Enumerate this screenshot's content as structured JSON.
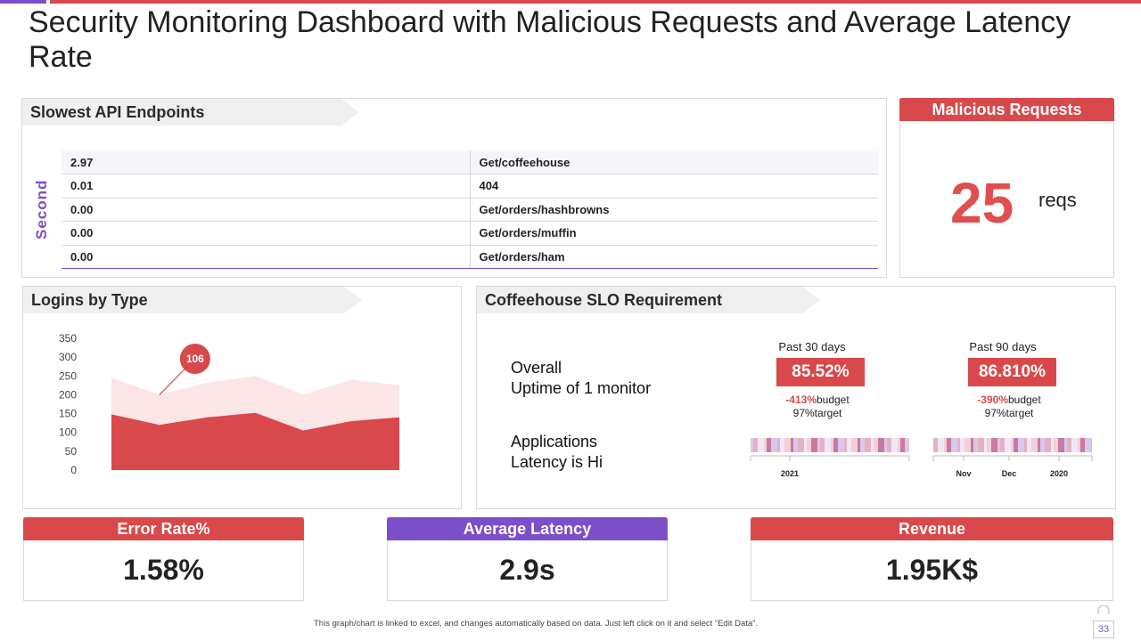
{
  "page": {
    "title": "Security Monitoring Dashboard with Malicious Requests and Average Latency Rate",
    "footer_note": "This graph/chart is linked to excel, and changes automatically based on data. Just left click on it and select “Edit Data”.",
    "page_number": "33"
  },
  "colors": {
    "accent_red": "#d9484a",
    "accent_purple": "#7b4fc9",
    "area_light": "#fbe5e6",
    "area_dark": "#d9484a"
  },
  "api_endpoints": {
    "title": "Slowest API Endpoints",
    "axis_label": "Second",
    "rows": [
      {
        "seconds": "2.97",
        "endpoint": "Get/coffeehouse"
      },
      {
        "seconds": "0.01",
        "endpoint": "404"
      },
      {
        "seconds": "0.00",
        "endpoint": "Get/orders/hashbrowns"
      },
      {
        "seconds": "0.00",
        "endpoint": "Get/orders/muffin"
      },
      {
        "seconds": "0.00",
        "endpoint": "Get/orders/ham"
      }
    ]
  },
  "malicious": {
    "title": "Malicious Requests",
    "value": "25",
    "unit": "reqs"
  },
  "logins": {
    "title": "Logins by Type"
  },
  "chart_data": {
    "type": "area",
    "title": "",
    "xlabel": "",
    "ylabel": "",
    "ylim": [
      0,
      350
    ],
    "yticks": [
      "350",
      "300",
      "250",
      "200",
      "150",
      "100",
      "50",
      "0"
    ],
    "x": [
      0,
      1,
      2,
      3,
      4,
      5,
      6
    ],
    "series": [
      {
        "values": [
          245,
          200,
          232,
          250,
          200,
          240,
          225
        ]
      },
      {
        "values": [
          148,
          120,
          140,
          152,
          105,
          130,
          140
        ]
      }
    ],
    "annotation": {
      "label": "106",
      "x_index": 1
    },
    "grid": false,
    "legend": "none"
  },
  "slo": {
    "title": "Coffeehouse SLO Requirement",
    "overall_line1": "Overall",
    "overall_line2": "Uptime of 1 monitor",
    "apps_line1": "Applications",
    "apps_line2": "Latency is Hi",
    "periods": [
      {
        "label": "Past 30 days",
        "value": "85.52%",
        "budget_pct": "-413%",
        "budget_word": "budget",
        "target": "97%target",
        "ticks": [
          "2021"
        ]
      },
      {
        "label": "Past 90 days",
        "value": "86.810%",
        "budget_pct": "-390%",
        "budget_word": "budget",
        "target": "97%target",
        "ticks": [
          "Nov",
          "Dec",
          "2020"
        ]
      }
    ]
  },
  "kpis": {
    "error_rate": {
      "label": "Error Rate%",
      "value": "1.58%",
      "color": "#d9484a"
    },
    "avg_latency": {
      "label": "Average Latency",
      "value": "2.9s",
      "color": "#7b4fc9"
    },
    "revenue": {
      "label": "Revenue",
      "value": "1.95K$",
      "color": "#d9484a"
    }
  }
}
